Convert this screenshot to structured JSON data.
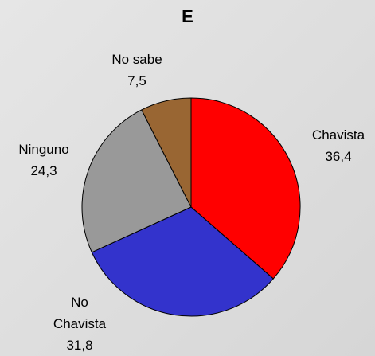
{
  "chart_data": {
    "type": "pie",
    "title": "E",
    "categories": [
      "Chavista",
      "No Chavista",
      "Ninguno",
      "No sabe"
    ],
    "values": [
      36.4,
      31.8,
      24.3,
      7.5
    ],
    "value_labels": [
      "36,4",
      "31,8",
      "24,3",
      "7,5"
    ],
    "colors": [
      "#ff0000",
      "#3333cc",
      "#999999",
      "#996633"
    ]
  }
}
